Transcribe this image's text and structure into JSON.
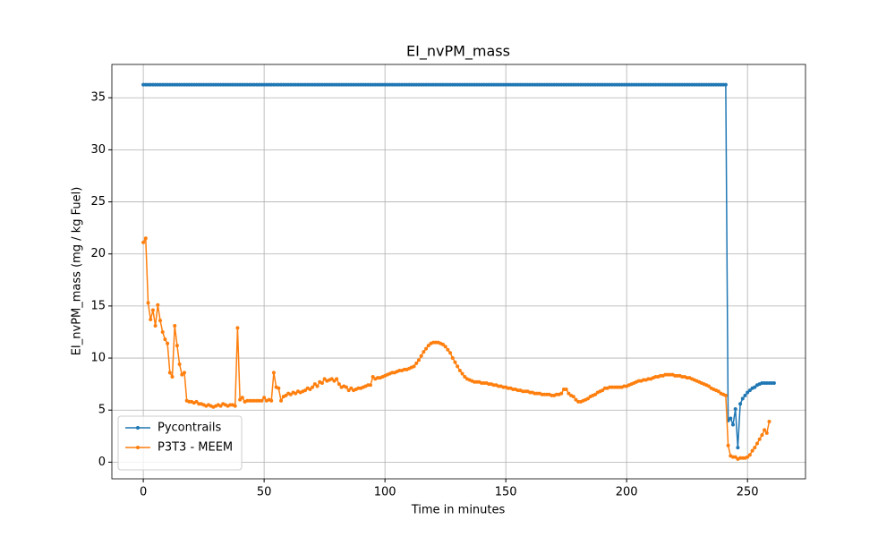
{
  "chart_data": {
    "type": "line",
    "title": "EI_nvPM_mass",
    "xlabel": "Time in minutes",
    "ylabel": "EI_nvPM_mass (mg / kg Fuel)",
    "x": [
      0,
      1,
      2,
      3,
      4,
      5,
      6,
      7,
      8,
      9,
      10,
      11,
      12,
      13,
      14,
      15,
      16,
      17,
      18,
      19,
      20,
      21,
      22,
      23,
      24,
      25,
      26,
      27,
      28,
      29,
      30,
      31,
      32,
      33,
      34,
      35,
      36,
      37,
      38,
      39,
      40,
      41,
      42,
      43,
      44,
      45,
      46,
      47,
      48,
      49,
      50,
      51,
      52,
      53,
      54,
      55,
      56,
      57,
      58,
      59,
      60,
      61,
      62,
      63,
      64,
      65,
      66,
      67,
      68,
      69,
      70,
      71,
      72,
      73,
      74,
      75,
      76,
      77,
      78,
      79,
      80,
      81,
      82,
      83,
      84,
      85,
      86,
      87,
      88,
      89,
      90,
      91,
      92,
      93,
      94,
      95,
      96,
      97,
      98,
      99,
      100,
      101,
      102,
      103,
      104,
      105,
      106,
      107,
      108,
      109,
      110,
      111,
      112,
      113,
      114,
      115,
      116,
      117,
      118,
      119,
      120,
      121,
      122,
      123,
      124,
      125,
      126,
      127,
      128,
      129,
      130,
      131,
      132,
      133,
      134,
      135,
      136,
      137,
      138,
      139,
      140,
      141,
      142,
      143,
      144,
      145,
      146,
      147,
      148,
      149,
      150,
      151,
      152,
      153,
      154,
      155,
      156,
      157,
      158,
      159,
      160,
      161,
      162,
      163,
      164,
      165,
      166,
      167,
      168,
      169,
      170,
      171,
      172,
      173,
      174,
      175,
      176,
      177,
      178,
      179,
      180,
      181,
      182,
      183,
      184,
      185,
      186,
      187,
      188,
      189,
      190,
      191,
      192,
      193,
      194,
      195,
      196,
      197,
      198,
      199,
      200,
      201,
      202,
      203,
      204,
      205,
      206,
      207,
      208,
      209,
      210,
      211,
      212,
      213,
      214,
      215,
      216,
      217,
      218,
      219,
      220,
      221,
      222,
      223,
      224,
      225,
      226,
      227,
      228,
      229,
      230,
      231,
      232,
      233,
      234,
      235,
      236,
      237,
      238,
      239,
      240,
      241,
      242,
      243,
      244,
      245,
      246,
      247,
      248,
      249,
      250,
      251,
      252,
      253,
      254,
      255,
      256,
      257,
      258,
      259,
      260,
      261
    ],
    "series": [
      {
        "name": "Pycontrails",
        "color": "#1f77b4",
        "values": [
          36.25,
          36.25,
          36.25,
          36.25,
          36.25,
          36.25,
          36.25,
          36.25,
          36.25,
          36.25,
          36.25,
          36.25,
          36.25,
          36.25,
          36.25,
          36.25,
          36.25,
          36.25,
          36.25,
          36.25,
          36.25,
          36.25,
          36.25,
          36.25,
          36.25,
          36.25,
          36.25,
          36.25,
          36.25,
          36.25,
          36.25,
          36.25,
          36.25,
          36.25,
          36.25,
          36.25,
          36.25,
          36.25,
          36.25,
          36.25,
          36.25,
          36.25,
          36.25,
          36.25,
          36.25,
          36.25,
          36.25,
          36.25,
          36.25,
          36.25,
          36.25,
          36.25,
          36.25,
          36.25,
          36.25,
          36.25,
          36.25,
          36.25,
          36.25,
          36.25,
          36.25,
          36.25,
          36.25,
          36.25,
          36.25,
          36.25,
          36.25,
          36.25,
          36.25,
          36.25,
          36.25,
          36.25,
          36.25,
          36.25,
          36.25,
          36.25,
          36.25,
          36.25,
          36.25,
          36.25,
          36.25,
          36.25,
          36.25,
          36.25,
          36.25,
          36.25,
          36.25,
          36.25,
          36.25,
          36.25,
          36.25,
          36.25,
          36.25,
          36.25,
          36.25,
          36.25,
          36.25,
          36.25,
          36.25,
          36.25,
          36.25,
          36.25,
          36.25,
          36.25,
          36.25,
          36.25,
          36.25,
          36.25,
          36.25,
          36.25,
          36.25,
          36.25,
          36.25,
          36.25,
          36.25,
          36.25,
          36.25,
          36.25,
          36.25,
          36.25,
          36.25,
          36.25,
          36.25,
          36.25,
          36.25,
          36.25,
          36.25,
          36.25,
          36.25,
          36.25,
          36.25,
          36.25,
          36.25,
          36.25,
          36.25,
          36.25,
          36.25,
          36.25,
          36.25,
          36.25,
          36.25,
          36.25,
          36.25,
          36.25,
          36.25,
          36.25,
          36.25,
          36.25,
          36.25,
          36.25,
          36.25,
          36.25,
          36.25,
          36.25,
          36.25,
          36.25,
          36.25,
          36.25,
          36.25,
          36.25,
          36.25,
          36.25,
          36.25,
          36.25,
          36.25,
          36.25,
          36.25,
          36.25,
          36.25,
          36.25,
          36.25,
          36.25,
          36.25,
          36.25,
          36.25,
          36.25,
          36.25,
          36.25,
          36.25,
          36.25,
          36.25,
          36.25,
          36.25,
          36.25,
          36.25,
          36.25,
          36.25,
          36.25,
          36.25,
          36.25,
          36.25,
          36.25,
          36.25,
          36.25,
          36.25,
          36.25,
          36.25,
          36.25,
          36.25,
          36.25,
          36.25,
          36.25,
          36.25,
          36.25,
          36.25,
          36.25,
          36.25,
          36.25,
          36.25,
          36.25,
          36.25,
          36.25,
          36.25,
          36.25,
          36.25,
          36.25,
          36.25,
          36.25,
          36.25,
          36.25,
          36.25,
          36.25,
          36.25,
          36.25,
          36.25,
          36.25,
          36.25,
          36.25,
          36.25,
          36.25,
          36.25,
          36.25,
          36.25,
          36.25,
          36.25,
          36.25,
          36.25,
          36.25,
          36.25,
          36.25,
          36.25,
          36.25,
          4.0,
          4.2,
          3.6,
          5.1,
          1.4,
          5.6,
          6.1,
          6.4,
          6.7,
          6.9,
          7.1,
          7.2,
          7.4,
          7.5,
          7.6,
          7.6,
          7.6,
          7.6,
          7.6,
          7.6
        ]
      },
      {
        "name": "P3T3 - MEEM",
        "color": "#ff7f0e",
        "values": [
          21.1,
          21.5,
          15.3,
          13.7,
          14.6,
          13.1,
          15.1,
          13.6,
          12.5,
          11.8,
          11.4,
          8.6,
          8.2,
          13.1,
          11.2,
          9.4,
          8.4,
          8.6,
          5.9,
          5.8,
          5.8,
          5.7,
          5.8,
          5.6,
          5.6,
          5.5,
          5.4,
          5.5,
          5.4,
          5.3,
          5.4,
          5.5,
          5.4,
          5.6,
          5.5,
          5.4,
          5.5,
          5.5,
          5.4,
          12.9,
          6.0,
          6.2,
          5.8,
          5.9,
          5.9,
          5.9,
          5.9,
          5.9,
          5.9,
          5.9,
          6.2,
          5.9,
          6.0,
          5.9,
          8.6,
          7.2,
          7.1,
          5.9,
          6.3,
          6.4,
          6.6,
          6.5,
          6.7,
          6.6,
          6.8,
          6.7,
          6.8,
          6.9,
          7.1,
          7.0,
          7.2,
          7.5,
          7.3,
          7.7,
          7.6,
          8.0,
          7.8,
          7.9,
          8.0,
          7.8,
          8.0,
          7.5,
          7.2,
          7.3,
          7.2,
          6.9,
          7.1,
          6.9,
          7.0,
          7.1,
          7.1,
          7.2,
          7.3,
          7.4,
          7.4,
          8.2,
          8.0,
          8.1,
          8.1,
          8.2,
          8.3,
          8.4,
          8.5,
          8.6,
          8.6,
          8.7,
          8.8,
          8.8,
          8.9,
          8.9,
          9.0,
          9.1,
          9.2,
          9.5,
          9.8,
          10.2,
          10.6,
          10.9,
          11.2,
          11.4,
          11.5,
          11.5,
          11.5,
          11.4,
          11.3,
          11.1,
          10.8,
          10.5,
          10.0,
          9.6,
          9.2,
          8.8,
          8.5,
          8.2,
          8.0,
          7.9,
          7.8,
          7.7,
          7.7,
          7.7,
          7.6,
          7.6,
          7.6,
          7.5,
          7.5,
          7.4,
          7.4,
          7.3,
          7.3,
          7.2,
          7.2,
          7.1,
          7.1,
          7.0,
          7.0,
          6.9,
          6.9,
          6.8,
          6.8,
          6.8,
          6.7,
          6.7,
          6.6,
          6.6,
          6.6,
          6.5,
          6.5,
          6.5,
          6.5,
          6.4,
          6.4,
          6.5,
          6.5,
          6.6,
          7.0,
          7.0,
          6.6,
          6.4,
          6.3,
          6.0,
          5.8,
          5.8,
          5.9,
          6.0,
          6.1,
          6.3,
          6.4,
          6.5,
          6.7,
          6.8,
          6.9,
          7.1,
          7.1,
          7.2,
          7.2,
          7.2,
          7.2,
          7.2,
          7.2,
          7.3,
          7.3,
          7.4,
          7.5,
          7.6,
          7.7,
          7.8,
          7.8,
          7.9,
          7.9,
          8.0,
          8.0,
          8.1,
          8.2,
          8.2,
          8.3,
          8.3,
          8.4,
          8.4,
          8.4,
          8.4,
          8.3,
          8.3,
          8.3,
          8.2,
          8.2,
          8.1,
          8.1,
          8.0,
          7.9,
          7.8,
          7.7,
          7.6,
          7.5,
          7.4,
          7.3,
          7.1,
          7.0,
          6.9,
          6.8,
          6.6,
          6.5,
          6.4,
          1.6,
          0.6,
          0.5,
          0.5,
          0.3,
          0.4,
          0.4,
          0.4,
          0.5,
          0.7,
          1.1,
          1.4,
          1.8,
          2.2,
          2.6,
          3.1,
          2.8,
          3.9,
          null,
          null
        ]
      }
    ],
    "xlim": [
      -13,
      274
    ],
    "ylim": [
      -1.6,
      38.2
    ],
    "xticks": [
      0,
      50,
      100,
      150,
      200,
      250
    ],
    "yticks": [
      0,
      5,
      10,
      15,
      20,
      25,
      30,
      35
    ],
    "grid": true,
    "legend": "lower left"
  }
}
